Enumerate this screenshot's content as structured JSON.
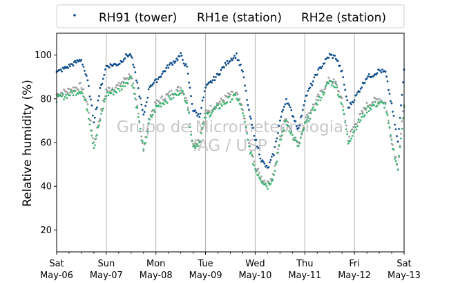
{
  "chart_data": {
    "type": "scatter",
    "ylabel": "Relative humidity (%)",
    "ylim": [
      10,
      110
    ],
    "yticks": [
      20,
      40,
      60,
      80,
      100
    ],
    "xlim": [
      "2017-05-06 00:00",
      "2017-05-13 00:00"
    ],
    "xticks": [
      {
        "day": "Sat",
        "date": "May-06"
      },
      {
        "day": "Sun",
        "date": "May-07"
      },
      {
        "day": "Mon",
        "date": "May-08"
      },
      {
        "day": "Tue",
        "date": "May-09"
      },
      {
        "day": "Wed",
        "date": "May-10"
      },
      {
        "day": "Thu",
        "date": "May-11"
      },
      {
        "day": "Fri",
        "date": "May-12"
      },
      {
        "day": "Sat",
        "date": "May-13"
      }
    ],
    "grid": "vertical",
    "legend_position": "top",
    "watermark": [
      "Grupo de Micrometeorologia",
      "IAG / USP"
    ],
    "series": [
      {
        "name": "RH91 (tower)",
        "color": "#0b4a8b",
        "x": [
          "05-06 00:00",
          "05-06 06:00",
          "05-06 12:00",
          "05-06 15:00",
          "05-06 18:00",
          "05-06 21:00",
          "05-07 00:00",
          "05-07 06:00",
          "05-07 10:00",
          "05-07 12:00",
          "05-07 15:00",
          "05-07 18:00",
          "05-07 21:00",
          "05-08 00:00",
          "05-08 06:00",
          "05-08 10:00",
          "05-08 12:00",
          "05-08 15:00",
          "05-08 18:00",
          "05-08 21:00",
          "05-09 00:00",
          "05-09 06:00",
          "05-09 09:00",
          "05-09 12:00",
          "05-09 15:00",
          "05-09 18:00",
          "05-09 21:00",
          "05-10 00:00",
          "05-10 03:00",
          "05-10 06:00",
          "05-10 09:00",
          "05-10 12:00",
          "05-10 15:00",
          "05-10 18:00",
          "05-10 21:00",
          "05-11 00:00",
          "05-11 06:00",
          "05-11 12:00",
          "05-11 15:00",
          "05-11 18:00",
          "05-11 21:00",
          "05-12 00:00",
          "05-12 06:00",
          "05-12 09:00",
          "05-12 12:00",
          "05-12 15:00",
          "05-12 18:00",
          "05-12 21:00",
          "05-13 00:00"
        ],
        "y": [
          92,
          95,
          98,
          88,
          70,
          84,
          95,
          96,
          100,
          100,
          87,
          72,
          86,
          88,
          95,
          98,
          100,
          94,
          75,
          72,
          85,
          91,
          95,
          98,
          100,
          92,
          74,
          62,
          52,
          48,
          55,
          70,
          80,
          73,
          66,
          80,
          92,
          100,
          99,
          92,
          76,
          80,
          90,
          91,
          93,
          92,
          77,
          60,
          94
        ]
      },
      {
        "name": "RH1e (station)",
        "color": "#3cb371",
        "x": [
          "05-06 00:00",
          "05-06 06:00",
          "05-06 12:00",
          "05-06 15:00",
          "05-06 18:00",
          "05-06 21:00",
          "05-07 00:00",
          "05-07 06:00",
          "05-07 10:00",
          "05-07 12:00",
          "05-07 15:00",
          "05-07 18:00",
          "05-07 21:00",
          "05-08 00:00",
          "05-08 06:00",
          "05-08 10:00",
          "05-08 12:00",
          "05-08 15:00",
          "05-08 18:00",
          "05-08 21:00",
          "05-09 00:00",
          "05-09 06:00",
          "05-09 09:00",
          "05-09 12:00",
          "05-09 15:00",
          "05-09 18:00",
          "05-09 21:00",
          "05-10 00:00",
          "05-10 03:00",
          "05-10 06:00",
          "05-10 09:00",
          "05-10 12:00",
          "05-10 15:00",
          "05-10 18:00",
          "05-10 21:00",
          "05-11 00:00",
          "05-11 06:00",
          "05-11 12:00",
          "05-11 15:00",
          "05-11 18:00",
          "05-11 21:00",
          "05-12 00:00",
          "05-12 06:00",
          "05-12 09:00",
          "05-12 12:00",
          "05-12 15:00",
          "05-12 18:00",
          "05-12 21:00",
          "05-13 00:00"
        ],
        "y": [
          80,
          82,
          84,
          75,
          58,
          70,
          82,
          84,
          88,
          90,
          75,
          56,
          70,
          76,
          80,
          82,
          84,
          79,
          58,
          60,
          72,
          76,
          78,
          80,
          81,
          74,
          58,
          48,
          43,
          40,
          45,
          60,
          70,
          63,
          58,
          68,
          78,
          88,
          86,
          78,
          60,
          66,
          75,
          77,
          78,
          77,
          60,
          48,
          77
        ]
      },
      {
        "name": "RH2e (station)",
        "color": "#9e9e9e",
        "x": [
          "05-06 00:00",
          "05-06 06:00",
          "05-06 12:00",
          "05-06 15:00",
          "05-06 18:00",
          "05-06 21:00",
          "05-07 00:00",
          "05-07 06:00",
          "05-07 10:00",
          "05-07 12:00",
          "05-07 15:00",
          "05-07 18:00",
          "05-07 21:00",
          "05-08 00:00",
          "05-08 06:00",
          "05-08 10:00",
          "05-08 12:00",
          "05-08 15:00",
          "05-08 18:00",
          "05-08 21:00",
          "05-09 00:00",
          "05-09 06:00",
          "05-09 09:00",
          "05-09 12:00",
          "05-09 15:00",
          "05-09 18:00",
          "05-09 21:00",
          "05-10 00:00",
          "05-10 03:00",
          "05-10 06:00",
          "05-10 09:00",
          "05-10 12:00",
          "05-10 15:00",
          "05-10 18:00",
          "05-10 21:00",
          "05-11 00:00",
          "05-11 06:00",
          "05-11 12:00",
          "05-11 15:00",
          "05-11 18:00",
          "05-11 21:00",
          "05-12 00:00",
          "05-12 06:00",
          "05-12 09:00",
          "05-12 12:00",
          "05-12 15:00",
          "05-12 18:00",
          "05-12 21:00",
          "05-13 00:00"
        ],
        "y": [
          82,
          84,
          86,
          77,
          60,
          72,
          84,
          86,
          90,
          91,
          76,
          57,
          72,
          78,
          82,
          84,
          85,
          80,
          59,
          62,
          74,
          78,
          80,
          82,
          82,
          75,
          59,
          49,
          44,
          41,
          46,
          62,
          72,
          64,
          59,
          70,
          80,
          89,
          87,
          79,
          62,
          68,
          77,
          79,
          80,
          78,
          61,
          49,
          78
        ]
      }
    ]
  }
}
